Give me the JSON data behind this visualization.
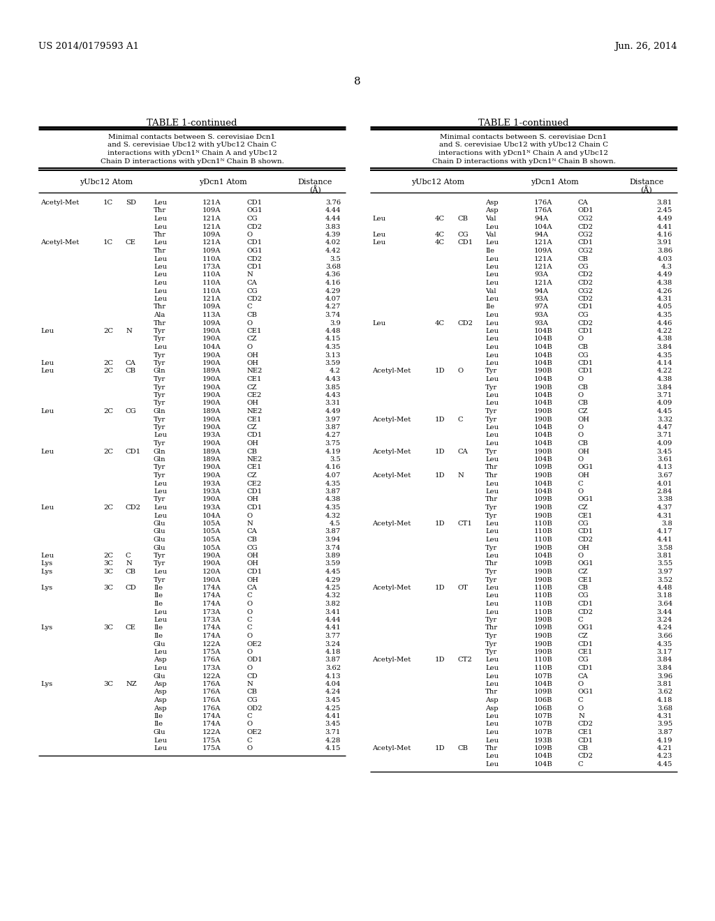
{
  "page_number": "8",
  "patent_left": "US 2014/0179593 A1",
  "patent_right": "Jun. 26, 2014",
  "table_title": "TABLE 1-continued",
  "left_data": [
    [
      "Acetyl-Met",
      "1C",
      "SD",
      "Leu",
      "121A",
      "CD1",
      "3.76"
    ],
    [
      "",
      "",
      "",
      "Thr",
      "109A",
      "OG1",
      "4.44"
    ],
    [
      "",
      "",
      "",
      "Leu",
      "121A",
      "CG",
      "4.44"
    ],
    [
      "",
      "",
      "",
      "Leu",
      "121A",
      "CD2",
      "3.83"
    ],
    [
      "",
      "",
      "",
      "Thr",
      "109A",
      "O",
      "4.39"
    ],
    [
      "Acetyl-Met",
      "1C",
      "CE",
      "Leu",
      "121A",
      "CD1",
      "4.02"
    ],
    [
      "",
      "",
      "",
      "Thr",
      "109A",
      "OG1",
      "4.42"
    ],
    [
      "",
      "",
      "",
      "Leu",
      "110A",
      "CD2",
      "3.5"
    ],
    [
      "",
      "",
      "",
      "Leu",
      "173A",
      "CD1",
      "3.68"
    ],
    [
      "",
      "",
      "",
      "Leu",
      "110A",
      "N",
      "4.36"
    ],
    [
      "",
      "",
      "",
      "Leu",
      "110A",
      "CA",
      "4.16"
    ],
    [
      "",
      "",
      "",
      "Leu",
      "110A",
      "CG",
      "4.29"
    ],
    [
      "",
      "",
      "",
      "Leu",
      "121A",
      "CD2",
      "4.07"
    ],
    [
      "",
      "",
      "",
      "Thr",
      "109A",
      "C",
      "4.27"
    ],
    [
      "",
      "",
      "",
      "Ala",
      "113A",
      "CB",
      "3.74"
    ],
    [
      "",
      "",
      "",
      "Thr",
      "109A",
      "O",
      "3.9"
    ],
    [
      "Leu",
      "2C",
      "N",
      "Tyr",
      "190A",
      "CE1",
      "4.48"
    ],
    [
      "",
      "",
      "",
      "Tyr",
      "190A",
      "CZ",
      "4.15"
    ],
    [
      "",
      "",
      "",
      "Leu",
      "104A",
      "O",
      "4.35"
    ],
    [
      "",
      "",
      "",
      "Tyr",
      "190A",
      "OH",
      "3.13"
    ],
    [
      "Leu",
      "2C",
      "CA",
      "Tyr",
      "190A",
      "OH",
      "3.59"
    ],
    [
      "Leu",
      "2C",
      "CB",
      "Gln",
      "189A",
      "NE2",
      "4.2"
    ],
    [
      "",
      "",
      "",
      "Tyr",
      "190A",
      "CE1",
      "4.43"
    ],
    [
      "",
      "",
      "",
      "Tyr",
      "190A",
      "CZ",
      "3.85"
    ],
    [
      "",
      "",
      "",
      "Tyr",
      "190A",
      "CE2",
      "4.43"
    ],
    [
      "",
      "",
      "",
      "Tyr",
      "190A",
      "OH",
      "3.31"
    ],
    [
      "Leu",
      "2C",
      "CG",
      "Gln",
      "189A",
      "NE2",
      "4.49"
    ],
    [
      "",
      "",
      "",
      "Tyr",
      "190A",
      "CE1",
      "3.97"
    ],
    [
      "",
      "",
      "",
      "Tyr",
      "190A",
      "CZ",
      "3.87"
    ],
    [
      "",
      "",
      "",
      "Leu",
      "193A",
      "CD1",
      "4.27"
    ],
    [
      "",
      "",
      "",
      "Tyr",
      "190A",
      "OH",
      "3.75"
    ],
    [
      "Leu",
      "2C",
      "CD1",
      "Gln",
      "189A",
      "CB",
      "4.19"
    ],
    [
      "",
      "",
      "",
      "Gln",
      "189A",
      "NE2",
      "3.5"
    ],
    [
      "",
      "",
      "",
      "Tyr",
      "190A",
      "CE1",
      "4.16"
    ],
    [
      "",
      "",
      "",
      "Tyr",
      "190A",
      "CZ",
      "4.07"
    ],
    [
      "",
      "",
      "",
      "Leu",
      "193A",
      "CE2",
      "4.35"
    ],
    [
      "",
      "",
      "",
      "Leu",
      "193A",
      "CD1",
      "3.87"
    ],
    [
      "",
      "",
      "",
      "Tyr",
      "190A",
      "OH",
      "4.38"
    ],
    [
      "Leu",
      "2C",
      "CD2",
      "Leu",
      "193A",
      "CD1",
      "4.35"
    ],
    [
      "",
      "",
      "",
      "Leu",
      "104A",
      "O",
      "4.32"
    ],
    [
      "",
      "",
      "",
      "Glu",
      "105A",
      "N",
      "4.5"
    ],
    [
      "",
      "",
      "",
      "Glu",
      "105A",
      "CA",
      "3.87"
    ],
    [
      "",
      "",
      "",
      "Glu",
      "105A",
      "CB",
      "3.94"
    ],
    [
      "",
      "",
      "",
      "Glu",
      "105A",
      "CG",
      "3.74"
    ],
    [
      "Leu",
      "2C",
      "C",
      "Tyr",
      "190A",
      "OH",
      "3.89"
    ],
    [
      "Lys",
      "3C",
      "N",
      "Tyr",
      "190A",
      "OH",
      "3.59"
    ],
    [
      "Lys",
      "3C",
      "CB",
      "Leu",
      "120A",
      "CD1",
      "4.45"
    ],
    [
      "",
      "",
      "",
      "Tyr",
      "190A",
      "OH",
      "4.29"
    ],
    [
      "Lys",
      "3C",
      "CD",
      "Ile",
      "174A",
      "CA",
      "4.25"
    ],
    [
      "",
      "",
      "",
      "Ile",
      "174A",
      "C",
      "4.32"
    ],
    [
      "",
      "",
      "",
      "Ile",
      "174A",
      "O",
      "3.82"
    ],
    [
      "",
      "",
      "",
      "Leu",
      "173A",
      "O",
      "3.41"
    ],
    [
      "",
      "",
      "",
      "Leu",
      "173A",
      "C",
      "4.44"
    ],
    [
      "Lys",
      "3C",
      "CE",
      "Ile",
      "174A",
      "C",
      "4.41"
    ],
    [
      "",
      "",
      "",
      "Ile",
      "174A",
      "O",
      "3.77"
    ],
    [
      "",
      "",
      "",
      "Glu",
      "122A",
      "OE2",
      "3.24"
    ],
    [
      "",
      "",
      "",
      "Leu",
      "175A",
      "O",
      "4.18"
    ],
    [
      "",
      "",
      "",
      "Asp",
      "176A",
      "OD1",
      "3.87"
    ],
    [
      "",
      "",
      "",
      "Leu",
      "173A",
      "O",
      "3.62"
    ],
    [
      "",
      "",
      "",
      "Glu",
      "122A",
      "CD",
      "4.13"
    ],
    [
      "Lys",
      "3C",
      "NZ",
      "Asp",
      "176A",
      "N",
      "4.04"
    ],
    [
      "",
      "",
      "",
      "Asp",
      "176A",
      "CB",
      "4.24"
    ],
    [
      "",
      "",
      "",
      "Asp",
      "176A",
      "CG",
      "3.45"
    ],
    [
      "",
      "",
      "",
      "Asp",
      "176A",
      "OD2",
      "4.25"
    ],
    [
      "",
      "",
      "",
      "Ile",
      "174A",
      "C",
      "4.41"
    ],
    [
      "",
      "",
      "",
      "Ile",
      "174A",
      "O",
      "3.45"
    ],
    [
      "",
      "",
      "",
      "Glu",
      "122A",
      "OE2",
      "3.71"
    ],
    [
      "",
      "",
      "",
      "Leu",
      "175A",
      "C",
      "4.28"
    ],
    [
      "",
      "",
      "",
      "Leu",
      "175A",
      "O",
      "4.15"
    ]
  ],
  "right_data": [
    [
      "",
      "",
      "",
      "Asp",
      "176A",
      "CA",
      "3.81"
    ],
    [
      "",
      "",
      "",
      "Asp",
      "176A",
      "OD1",
      "2.45"
    ],
    [
      "Leu",
      "4C",
      "CB",
      "Val",
      "94A",
      "CG2",
      "4.49"
    ],
    [
      "",
      "",
      "",
      "Leu",
      "104A",
      "CD2",
      "4.41"
    ],
    [
      "Leu",
      "4C",
      "CG",
      "Val",
      "94A",
      "CG2",
      "4.16"
    ],
    [
      "Leu",
      "4C",
      "CD1",
      "Leu",
      "121A",
      "CD1",
      "3.91"
    ],
    [
      "",
      "",
      "",
      "Ile",
      "109A",
      "CG2",
      "3.86"
    ],
    [
      "",
      "",
      "",
      "Leu",
      "121A",
      "CB",
      "4.03"
    ],
    [
      "",
      "",
      "",
      "Leu",
      "121A",
      "CG",
      "4.3"
    ],
    [
      "",
      "",
      "",
      "Leu",
      "93A",
      "CD2",
      "4.49"
    ],
    [
      "",
      "",
      "",
      "Leu",
      "121A",
      "CD2",
      "4.38"
    ],
    [
      "",
      "",
      "",
      "Val",
      "94A",
      "CG2",
      "4.26"
    ],
    [
      "",
      "",
      "",
      "Leu",
      "93A",
      "CD2",
      "4.31"
    ],
    [
      "",
      "",
      "",
      "Ile",
      "97A",
      "CD1",
      "4.05"
    ],
    [
      "",
      "",
      "",
      "Leu",
      "93A",
      "CG",
      "4.35"
    ],
    [
      "Leu",
      "4C",
      "CD2",
      "Leu",
      "93A",
      "CD2",
      "4.46"
    ],
    [
      "",
      "",
      "",
      "Leu",
      "104B",
      "CD1",
      "4.22"
    ],
    [
      "",
      "",
      "",
      "Leu",
      "104B",
      "O",
      "4.38"
    ],
    [
      "",
      "",
      "",
      "Leu",
      "104B",
      "CB",
      "3.84"
    ],
    [
      "",
      "",
      "",
      "Leu",
      "104B",
      "CG",
      "4.35"
    ],
    [
      "",
      "",
      "",
      "Leu",
      "104B",
      "CD1",
      "4.14"
    ],
    [
      "Acetyl-Met",
      "1D",
      "O",
      "Tyr",
      "190B",
      "CD1",
      "4.22"
    ],
    [
      "",
      "",
      "",
      "Leu",
      "104B",
      "O",
      "4.38"
    ],
    [
      "",
      "",
      "",
      "Tyr",
      "190B",
      "CB",
      "3.84"
    ],
    [
      "",
      "",
      "",
      "Leu",
      "104B",
      "O",
      "3.71"
    ],
    [
      "",
      "",
      "",
      "Leu",
      "104B",
      "CB",
      "4.09"
    ],
    [
      "",
      "",
      "",
      "Tyr",
      "190B",
      "CZ",
      "4.45"
    ],
    [
      "Acetyl-Met",
      "1D",
      "C",
      "Tyr",
      "190B",
      "OH",
      "3.32"
    ],
    [
      "",
      "",
      "",
      "Leu",
      "104B",
      "O",
      "4.47"
    ],
    [
      "",
      "",
      "",
      "Leu",
      "104B",
      "O",
      "3.71"
    ],
    [
      "",
      "",
      "",
      "Leu",
      "104B",
      "CB",
      "4.09"
    ],
    [
      "Acetyl-Met",
      "1D",
      "CA",
      "Tyr",
      "190B",
      "OH",
      "3.45"
    ],
    [
      "",
      "",
      "",
      "Leu",
      "104B",
      "O",
      "3.61"
    ],
    [
      "",
      "",
      "",
      "Thr",
      "109B",
      "OG1",
      "4.13"
    ],
    [
      "Acetyl-Met",
      "1D",
      "N",
      "Thr",
      "190B",
      "OH",
      "3.67"
    ],
    [
      "",
      "",
      "",
      "Leu",
      "104B",
      "C",
      "4.01"
    ],
    [
      "",
      "",
      "",
      "Leu",
      "104B",
      "O",
      "2.84"
    ],
    [
      "",
      "",
      "",
      "Thr",
      "109B",
      "OG1",
      "3.38"
    ],
    [
      "",
      "",
      "",
      "Tyr",
      "190B",
      "CZ",
      "4.37"
    ],
    [
      "",
      "",
      "",
      "Tyr",
      "190B",
      "CE1",
      "4.31"
    ],
    [
      "Acetyl-Met",
      "1D",
      "CT1",
      "Leu",
      "110B",
      "CG",
      "3.8"
    ],
    [
      "",
      "",
      "",
      "Leu",
      "110B",
      "CD1",
      "4.17"
    ],
    [
      "",
      "",
      "",
      "Leu",
      "110B",
      "CD2",
      "4.41"
    ],
    [
      "",
      "",
      "",
      "Tyr",
      "190B",
      "OH",
      "3.58"
    ],
    [
      "",
      "",
      "",
      "Leu",
      "104B",
      "O",
      "3.81"
    ],
    [
      "",
      "",
      "",
      "Thr",
      "109B",
      "OG1",
      "3.55"
    ],
    [
      "",
      "",
      "",
      "Tyr",
      "190B",
      "CZ",
      "3.97"
    ],
    [
      "",
      "",
      "",
      "Tyr",
      "190B",
      "CE1",
      "3.52"
    ],
    [
      "Acetyl-Met",
      "1D",
      "OT",
      "Leu",
      "110B",
      "CB",
      "4.48"
    ],
    [
      "",
      "",
      "",
      "Leu",
      "110B",
      "CG",
      "3.18"
    ],
    [
      "",
      "",
      "",
      "Leu",
      "110B",
      "CD1",
      "3.64"
    ],
    [
      "",
      "",
      "",
      "Leu",
      "110B",
      "CD2",
      "3.44"
    ],
    [
      "",
      "",
      "",
      "Tyr",
      "190B",
      "C",
      "3.24"
    ],
    [
      "",
      "",
      "",
      "Thr",
      "109B",
      "OG1",
      "4.24"
    ],
    [
      "",
      "",
      "",
      "Tyr",
      "190B",
      "CZ",
      "3.66"
    ],
    [
      "",
      "",
      "",
      "Tyr",
      "190B",
      "CD1",
      "4.35"
    ],
    [
      "",
      "",
      "",
      "Tyr",
      "190B",
      "CE1",
      "3.17"
    ],
    [
      "Acetyl-Met",
      "1D",
      "CT2",
      "Leu",
      "110B",
      "CG",
      "3.84"
    ],
    [
      "",
      "",
      "",
      "Leu",
      "110B",
      "CD1",
      "3.84"
    ],
    [
      "",
      "",
      "",
      "Leu",
      "107B",
      "CA",
      "3.96"
    ],
    [
      "",
      "",
      "",
      "Leu",
      "104B",
      "O",
      "3.81"
    ],
    [
      "",
      "",
      "",
      "Thr",
      "109B",
      "OG1",
      "3.62"
    ],
    [
      "",
      "",
      "",
      "Asp",
      "106B",
      "C",
      "4.18"
    ],
    [
      "",
      "",
      "",
      "Asp",
      "106B",
      "O",
      "3.68"
    ],
    [
      "",
      "",
      "",
      "Leu",
      "107B",
      "N",
      "4.31"
    ],
    [
      "",
      "",
      "",
      "Leu",
      "107B",
      "CD2",
      "3.95"
    ],
    [
      "",
      "",
      "",
      "Leu",
      "107B",
      "CE1",
      "3.87"
    ],
    [
      "",
      "",
      "",
      "Leu",
      "193B",
      "CD1",
      "4.19"
    ],
    [
      "Acetyl-Met",
      "1D",
      "CB",
      "Thr",
      "109B",
      "CB",
      "4.21"
    ],
    [
      "",
      "",
      "",
      "Leu",
      "104B",
      "CD2",
      "4.23"
    ],
    [
      "",
      "",
      "",
      "Leu",
      "104B",
      "C",
      "4.45"
    ]
  ],
  "background_color": "#ffffff",
  "text_color": "#000000",
  "font_size": 7.2,
  "header_font_size": 8.0,
  "title_fontsize": 9.5
}
